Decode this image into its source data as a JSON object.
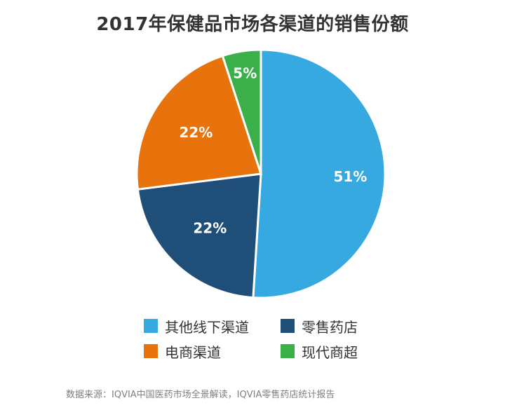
{
  "title": "2017年保健品市场各渠道的销售份额",
  "source": "数据来源：IQVIA中国医药市场全景解读，IQVIA零售药店统计报告",
  "chart_data": {
    "type": "pie",
    "title": "2017年保健品市场各渠道的销售份额",
    "start_angle_deg": 0,
    "direction": "clockwise",
    "legend_position": "bottom",
    "slices": [
      {
        "name": "其他线下渠道",
        "value": 51,
        "label": "51%",
        "color": "#36A9E1"
      },
      {
        "name": "零售药店",
        "value": 22,
        "label": "22%",
        "color": "#1F4E79"
      },
      {
        "name": "电商渠道",
        "value": 22,
        "label": "22%",
        "color": "#E8720C"
      },
      {
        "name": "现代商超",
        "value": 5,
        "label": "5%",
        "color": "#3BB04A"
      }
    ]
  }
}
